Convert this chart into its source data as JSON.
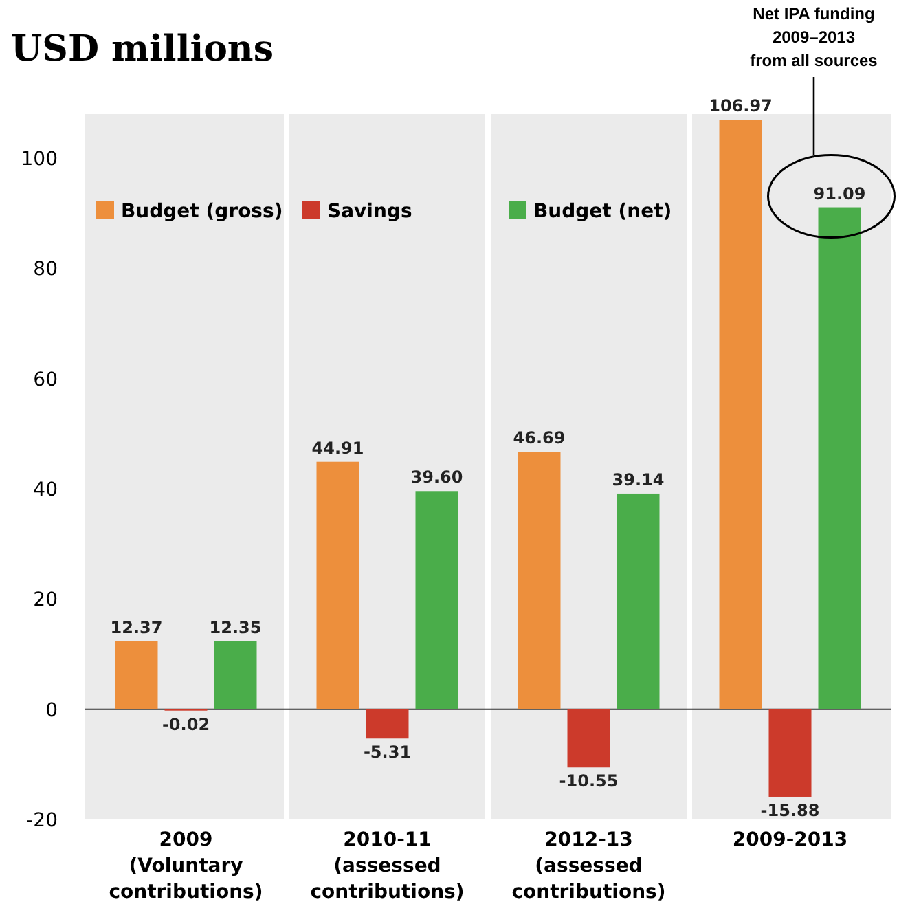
{
  "chart_data": {
    "type": "bar",
    "title": "USD millions",
    "categories": [
      "2009\n(Voluntary\ncontributions)",
      "2010-11\n(assessed\ncontributions)",
      "2012-13\n(assessed\ncontributions)",
      "2009-2013"
    ],
    "series": [
      {
        "name": "Budget (gross)",
        "color": "#ed8f3c",
        "values": [
          12.37,
          44.91,
          46.69,
          106.97
        ],
        "value_labels": [
          "12.37",
          "44.91",
          "46.69",
          "106.97"
        ]
      },
      {
        "name": "Savings",
        "color": "#cc3a2b",
        "values": [
          -0.02,
          -5.31,
          -10.55,
          -15.88
        ],
        "value_labels": [
          "-0.02",
          "-5.31",
          "-10.55",
          "-15.88"
        ]
      },
      {
        "name": "Budget (net)",
        "color": "#4aad4a",
        "values": [
          12.35,
          39.6,
          39.14,
          91.09
        ],
        "value_labels": [
          "12.35",
          "39.60",
          "39.14",
          "91.09"
        ]
      }
    ],
    "ylim": [
      -20,
      108
    ],
    "yticks": [
      -20,
      0,
      20,
      40,
      60,
      80,
      100
    ],
    "legend": "top",
    "grid": false,
    "annotations": [
      "Net IPA funding\n2009–2013\nfrom all sources"
    ]
  }
}
